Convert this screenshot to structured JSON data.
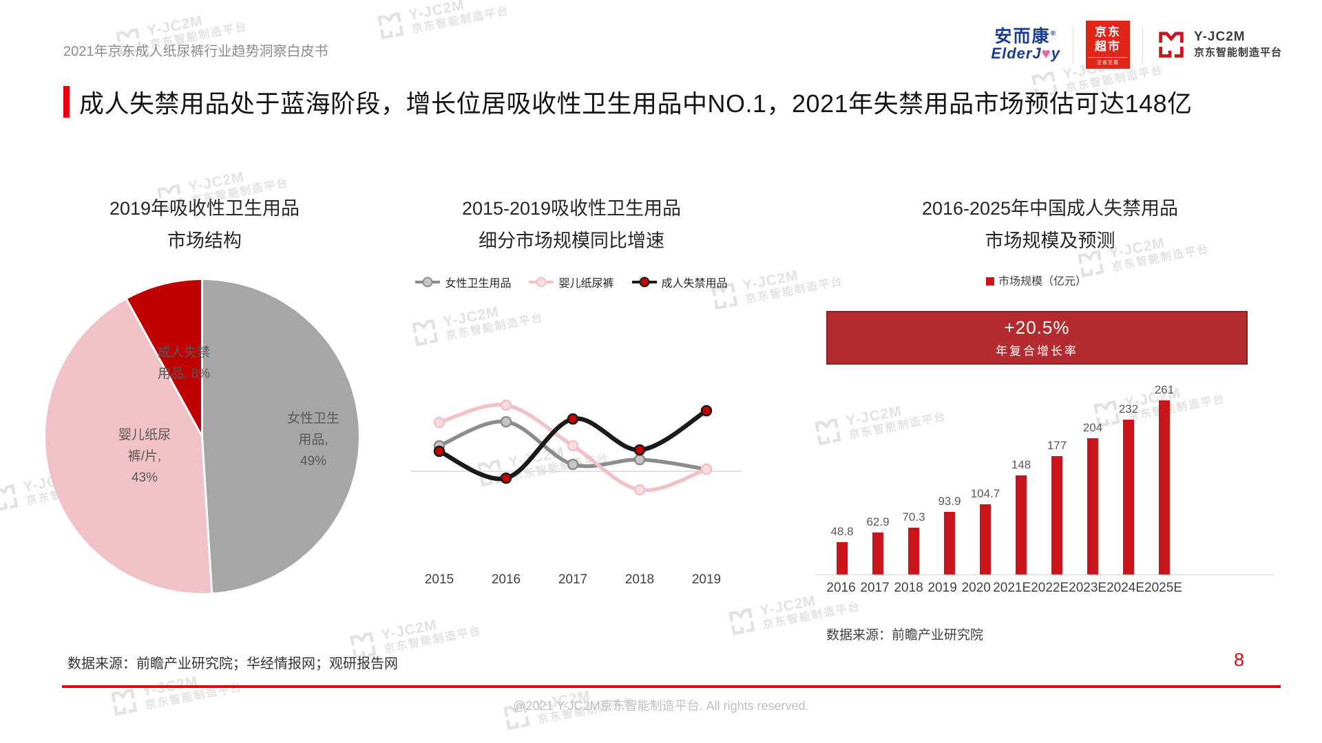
{
  "header": {
    "doc_title": "2021年京东成人纸尿裤行业趋势洞察白皮书",
    "logos": {
      "elderjoy_cn": "安而康",
      "elderjoy_reg": "®",
      "elderjoy_en_left": "ElderJ",
      "elderjoy_heart_icon": "♥",
      "elderjoy_en_right": "y",
      "jd_market_line1": "京东",
      "jd_market_line2": "超市",
      "jd_market_sub": "至省至真",
      "yjc2m_name": "Y-JC2M",
      "yjc2m_platform": "京东智能制造平台"
    }
  },
  "headline": "成人失禁用品处于蓝海阶段，增长位居吸收性卫生用品中NO.1，2021年失禁用品市场预估可达148亿",
  "chart_data": [
    {
      "type": "pie",
      "title": "2019年吸收性卫生用品 市场结构",
      "title_lines": [
        "2019年吸收性卫生用品",
        "市场结构"
      ],
      "slices": [
        {
          "label": "女性卫生用品",
          "value": 49,
          "color": "#a6a6a6",
          "label_lines": [
            "女性卫生",
            "用品,",
            "49%"
          ]
        },
        {
          "label": "婴儿纸尿裤/片",
          "value": 43,
          "color": "#f0c1c6",
          "label_lines": [
            "婴儿纸尿",
            "裤/片,",
            "43%"
          ]
        },
        {
          "label": "成人失禁用品",
          "value": 8,
          "color": "#c00000",
          "label_lines": [
            "成人失禁",
            "用品, 8%"
          ]
        }
      ]
    },
    {
      "type": "line",
      "title": "2015-2019吸收性卫生用品 细分市场规模同比增速",
      "title_lines": [
        "2015-2019吸收性卫生用品",
        "细分市场规模同比增速"
      ],
      "x": [
        "2015",
        "2016",
        "2017",
        "2018",
        "2019"
      ],
      "y_axis_labeled": false,
      "ylim": [
        -4,
        12
      ],
      "series": [
        {
          "name": "女性卫生用品",
          "color": "#8c8c8c",
          "marker_fill": "#c6c6c6",
          "values": [
            3.7,
            7.2,
            1.0,
            1.7,
            0.3
          ]
        },
        {
          "name": "婴儿纸尿裤",
          "color": "#f0c1c6",
          "marker_fill": "#f6dcde",
          "values": [
            7.1,
            9.6,
            3.7,
            -2.7,
            0.3
          ]
        },
        {
          "name": "成人失禁用品",
          "color": "#1a1a1a",
          "marker_fill": "#c00000",
          "values": [
            2.9,
            -1.0,
            7.6,
            3.1,
            8.8
          ]
        }
      ]
    },
    {
      "type": "bar",
      "title": "2016-2025年中国成人失禁用品 市场规模及预测",
      "title_lines": [
        "2016-2025年中国成人失禁用品",
        "市场规模及预测"
      ],
      "legend": "市场规模（亿元）",
      "banner": {
        "value": "+20.5%",
        "label": "年复合增长率"
      },
      "categories": [
        "2016",
        "2017",
        "2018",
        "2019",
        "2020",
        "2021E",
        "2022E",
        "2023E",
        "2024E",
        "2025E"
      ],
      "values": [
        48.8,
        62.9,
        70.3,
        93.9,
        104.7,
        148,
        177,
        204,
        232,
        261
      ],
      "bar_color": "#c9161d",
      "ylim": [
        0,
        280
      ]
    }
  ],
  "sources": {
    "bottom_left": "数据来源：前瞻产业研究院；华经情报网；观研报告网",
    "bar_chart": "数据来源：前瞻产业研究院"
  },
  "footer": {
    "copyright": "@2021 Y-JC2M京东智能制造平台. All rights reserved.",
    "page_number": "8"
  },
  "watermark": {
    "brand": "Y-JC2M",
    "platform": "京东智能制造平台"
  },
  "colors": {
    "accent_red": "#e60012",
    "banner_red": "#b42b30",
    "bar_red": "#c9161d",
    "pie_red": "#c00000",
    "pie_pink": "#f0c1c6",
    "pie_gray": "#a6a6a6"
  }
}
